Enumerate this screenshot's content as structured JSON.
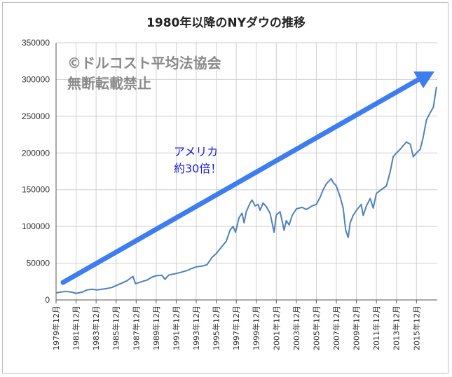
{
  "chart_data": {
    "type": "line",
    "title": "1980年以降のNYダウの推移",
    "ylim": [
      0,
      350000
    ],
    "y_ticks": [
      "0",
      "50000",
      "100000",
      "150000",
      "200000",
      "250000",
      "300000",
      "350000"
    ],
    "x_ticks": [
      "1979年12月",
      "1981年12月",
      "1983年12月",
      "1985年12月",
      "1987年12月",
      "1989年12月",
      "1991年12月",
      "1993年12月",
      "1995年12月",
      "1997年12月",
      "1999年12月",
      "2001年12月",
      "2003年12月",
      "2005年12月",
      "2007年12月",
      "2009年12月",
      "2011年12月",
      "2013年12月",
      "2015年12月"
    ],
    "grid": true,
    "series": [
      {
        "color": "#4f81bd",
        "points": [
          [
            1979.92,
            9500
          ],
          [
            1980.5,
            11000
          ],
          [
            1981.0,
            11500
          ],
          [
            1981.5,
            10500
          ],
          [
            1981.92,
            9000
          ],
          [
            1982.5,
            10500
          ],
          [
            1983.0,
            13500
          ],
          [
            1983.5,
            14500
          ],
          [
            1984.0,
            13500
          ],
          [
            1984.5,
            14500
          ],
          [
            1985.0,
            15500
          ],
          [
            1985.5,
            17000
          ],
          [
            1985.92,
            19500
          ],
          [
            1986.5,
            23000
          ],
          [
            1987.0,
            26000
          ],
          [
            1987.6,
            32000
          ],
          [
            1987.85,
            22000
          ],
          [
            1988.5,
            25000
          ],
          [
            1989.0,
            27000
          ],
          [
            1989.5,
            31000
          ],
          [
            1989.92,
            33000
          ],
          [
            1990.5,
            33500
          ],
          [
            1990.8,
            28000
          ],
          [
            1991.2,
            34000
          ],
          [
            1991.92,
            36000
          ],
          [
            1992.5,
            38000
          ],
          [
            1993.0,
            40000
          ],
          [
            1993.5,
            43000
          ],
          [
            1993.92,
            45000
          ],
          [
            1994.5,
            46000
          ],
          [
            1995.0,
            48000
          ],
          [
            1995.5,
            58000
          ],
          [
            1995.92,
            63000
          ],
          [
            1996.5,
            73000
          ],
          [
            1996.92,
            80000
          ],
          [
            1997.3,
            95000
          ],
          [
            1997.6,
            100000
          ],
          [
            1997.85,
            92000
          ],
          [
            1998.2,
            112000
          ],
          [
            1998.5,
            118000
          ],
          [
            1998.7,
            105000
          ],
          [
            1998.92,
            120000
          ],
          [
            1999.3,
            132000
          ],
          [
            1999.5,
            136000
          ],
          [
            1999.8,
            128000
          ],
          [
            2000.1,
            130000
          ],
          [
            2000.3,
            122000
          ],
          [
            2000.6,
            132000
          ],
          [
            2000.92,
            127000
          ],
          [
            2001.3,
            118000
          ],
          [
            2001.7,
            92000
          ],
          [
            2001.92,
            116000
          ],
          [
            2002.3,
            120000
          ],
          [
            2002.7,
            95000
          ],
          [
            2002.92,
            108000
          ],
          [
            2003.2,
            102000
          ],
          [
            2003.5,
            115000
          ],
          [
            2003.92,
            124000
          ],
          [
            2004.5,
            126000
          ],
          [
            2004.92,
            123000
          ],
          [
            2005.5,
            128000
          ],
          [
            2005.92,
            130000
          ],
          [
            2006.3,
            140000
          ],
          [
            2006.6,
            150000
          ],
          [
            2006.92,
            158000
          ],
          [
            2007.4,
            165000
          ],
          [
            2007.6,
            160000
          ],
          [
            2007.92,
            155000
          ],
          [
            2008.3,
            140000
          ],
          [
            2008.6,
            125000
          ],
          [
            2008.85,
            95000
          ],
          [
            2009.1,
            85000
          ],
          [
            2009.3,
            105000
          ],
          [
            2009.6,
            115000
          ],
          [
            2009.92,
            122000
          ],
          [
            2010.4,
            130000
          ],
          [
            2010.6,
            115000
          ],
          [
            2010.92,
            128000
          ],
          [
            2011.3,
            138000
          ],
          [
            2011.6,
            125000
          ],
          [
            2011.92,
            145000
          ],
          [
            2012.4,
            150000
          ],
          [
            2012.92,
            155000
          ],
          [
            2013.3,
            175000
          ],
          [
            2013.6,
            195000
          ],
          [
            2013.92,
            200000
          ],
          [
            2014.3,
            205000
          ],
          [
            2014.6,
            210000
          ],
          [
            2014.92,
            215000
          ],
          [
            2015.3,
            212000
          ],
          [
            2015.6,
            195000
          ],
          [
            2015.92,
            200000
          ],
          [
            2016.3,
            205000
          ],
          [
            2016.6,
            222000
          ],
          [
            2016.92,
            245000
          ],
          [
            2017.3,
            255000
          ],
          [
            2017.6,
            262000
          ],
          [
            2017.92,
            290000
          ]
        ]
      }
    ],
    "annotation": {
      "text_lines": [
        "アメリカ",
        "約30倍！"
      ],
      "color": "#1a1ae6"
    },
    "arrow_color": "#3d7df0"
  },
  "watermark": {
    "line1": "©ドルコスト平均法協会",
    "line2": "無断転載禁止",
    "color": "#8a8a8a"
  }
}
